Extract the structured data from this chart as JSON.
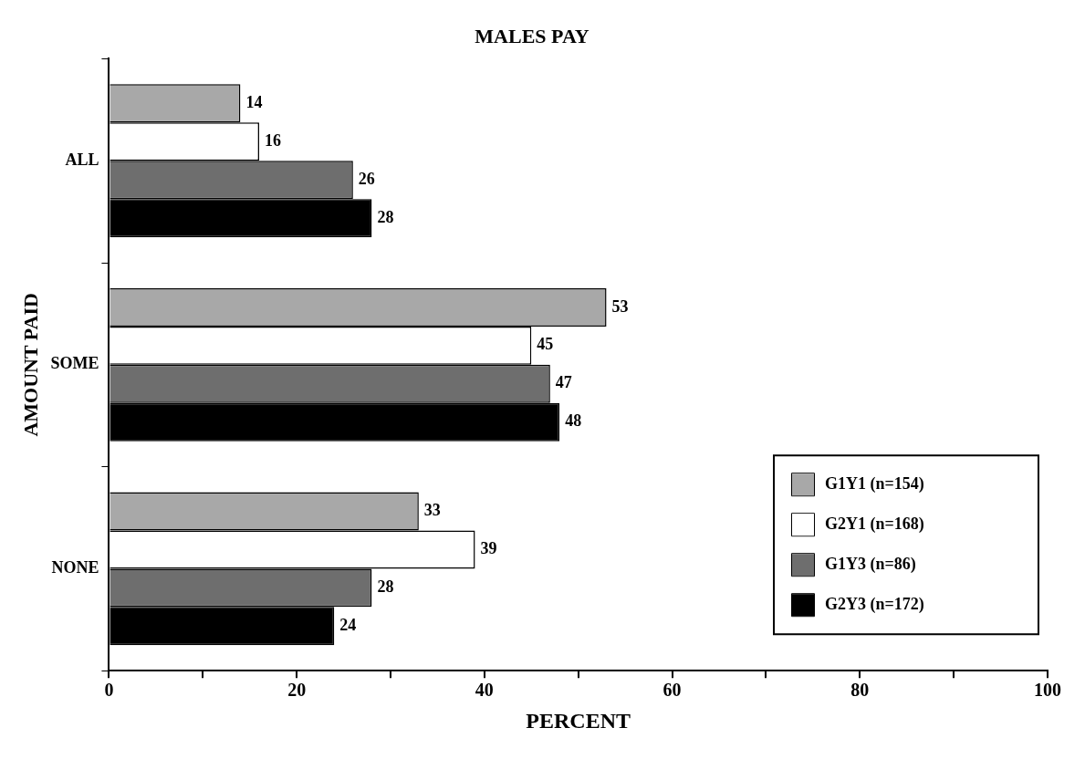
{
  "chart_data": {
    "type": "bar",
    "orientation": "horizontal",
    "title": "MALES PAY",
    "xlabel": "PERCENT",
    "ylabel": "AMOUNT PAID",
    "categories": [
      "ALL",
      "SOME",
      "NONE"
    ],
    "series": [
      {
        "name": "G1Y1 (n=154)",
        "color": "#a8a8a8",
        "values": [
          14,
          53,
          33
        ]
      },
      {
        "name": "G2Y1 (n=168)",
        "color": "#ffffff",
        "values": [
          16,
          45,
          39
        ]
      },
      {
        "name": "G1Y3 (n=86)",
        "color": "#6e6e6e",
        "values": [
          26,
          47,
          28
        ]
      },
      {
        "name": "G2Y3 (n=172)",
        "color": "#000000",
        "values": [
          28,
          48,
          24
        ]
      }
    ],
    "xlim": [
      0,
      100
    ],
    "xticks": [
      0,
      {
        "value": 10,
        "label": null
      },
      20,
      {
        "value": 30,
        "label": null
      },
      40,
      {
        "value": 50,
        "label": null
      },
      60,
      {
        "value": 70,
        "label": null
      },
      80,
      {
        "value": 90,
        "label": null
      },
      100
    ],
    "grid": false,
    "legend": "bottom right",
    "data_labels": true
  }
}
